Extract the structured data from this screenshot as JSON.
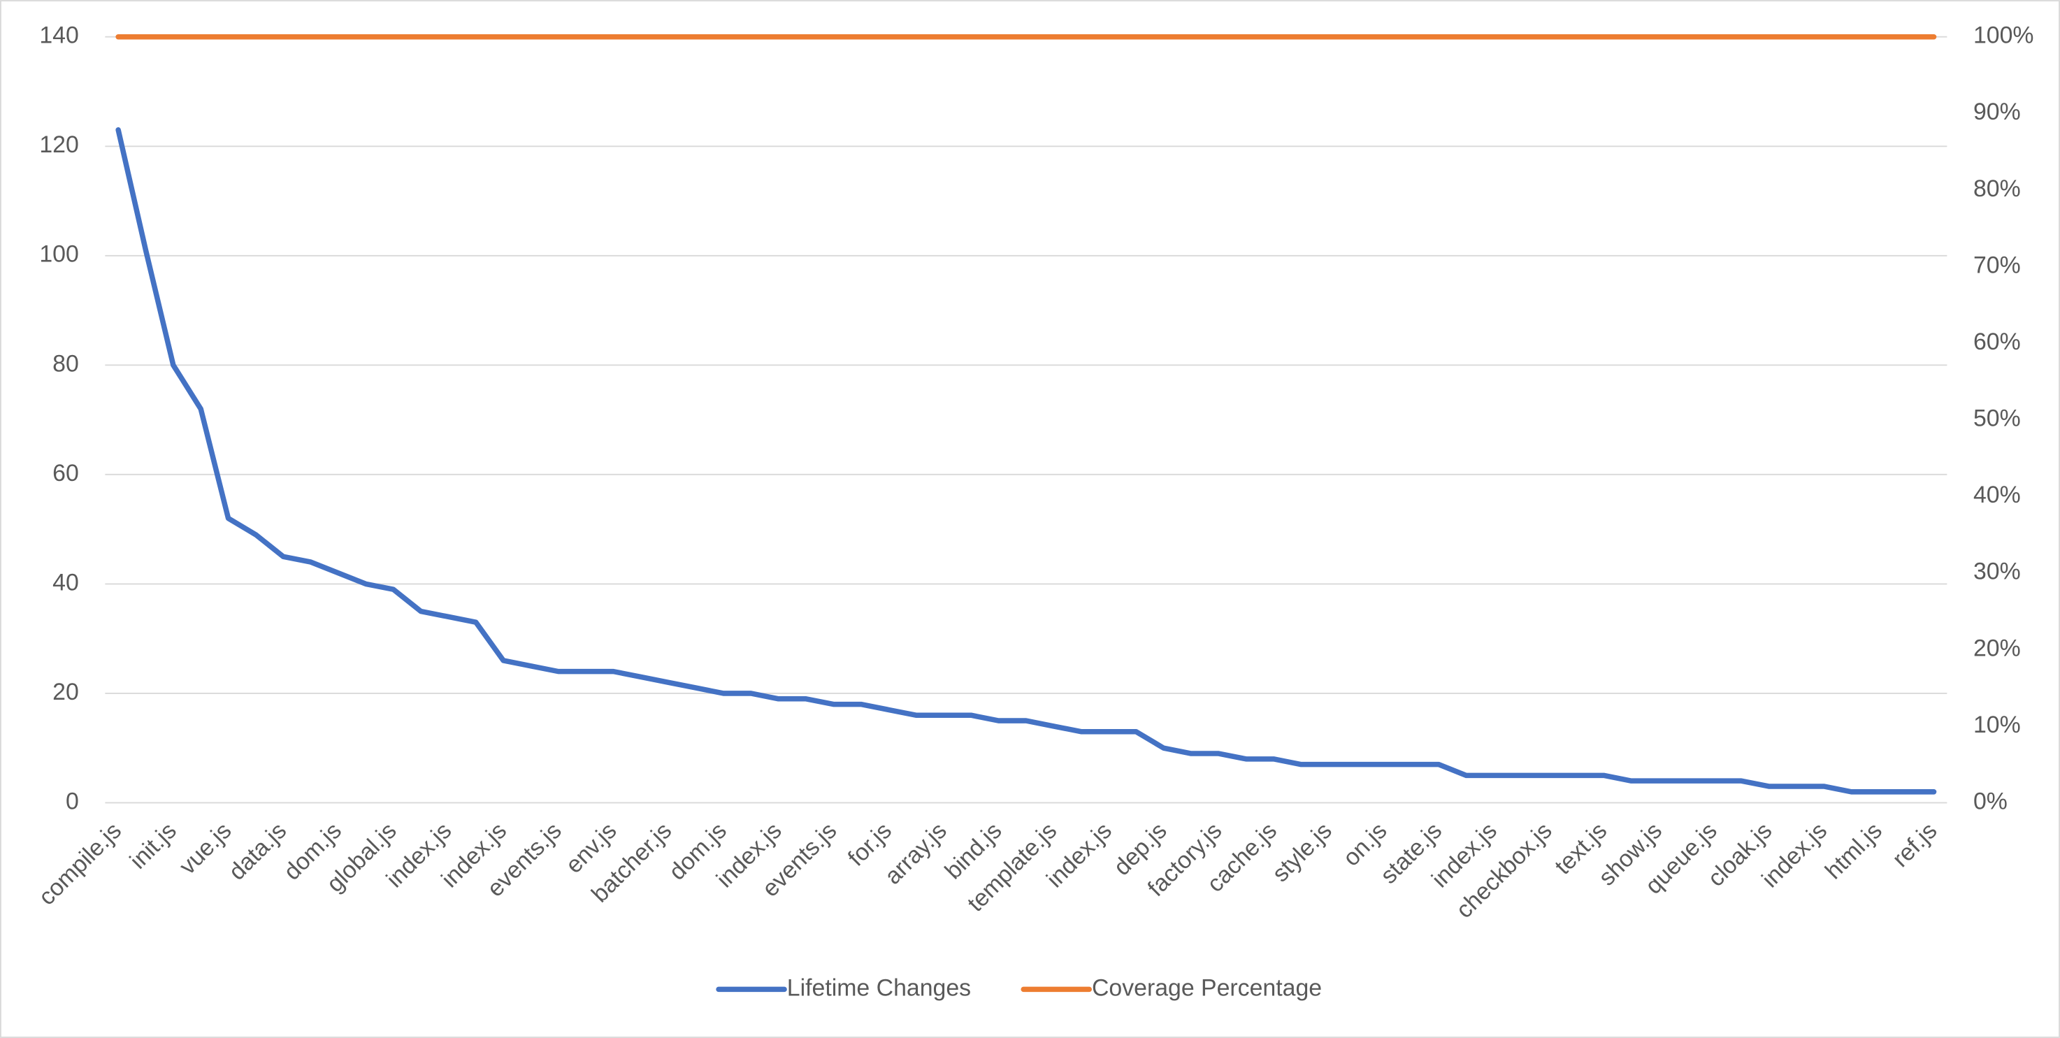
{
  "chart_data": {
    "type": "line",
    "categories": [
      "compile.js",
      null,
      "init.js",
      null,
      "vue.js",
      null,
      "data.js",
      null,
      "dom.js",
      null,
      "global.js",
      null,
      "index.js",
      null,
      "index.js",
      null,
      "events.js",
      null,
      "env.js",
      null,
      "batcher.js",
      null,
      "dom.js",
      null,
      "index.js",
      null,
      "events.js",
      null,
      "for.js",
      null,
      "array.js",
      null,
      "bind.js",
      null,
      "template.js",
      null,
      "index.js",
      null,
      "dep.js",
      null,
      "factory.js",
      null,
      "cache.js",
      null,
      "style.js",
      null,
      "on.js",
      null,
      "state.js",
      null,
      "index.js",
      null,
      "checkbox.js",
      null,
      "text.js",
      null,
      "show.js",
      null,
      "queue.js",
      null,
      "cloak.js",
      null,
      "index.js",
      null,
      "html.js",
      null,
      "ref.js"
    ],
    "series": [
      {
        "name": "Lifetime Changes",
        "color": "#4472c4",
        "values": [
          123,
          101,
          80,
          72,
          52,
          49,
          45,
          44,
          42,
          40,
          39,
          35,
          34,
          33,
          26,
          25,
          24,
          24,
          24,
          23,
          22,
          21,
          20,
          20,
          19,
          19,
          18,
          18,
          17,
          16,
          16,
          16,
          15,
          15,
          14,
          13,
          13,
          13,
          10,
          9,
          9,
          8,
          8,
          7,
          7,
          7,
          7,
          7,
          7,
          5,
          5,
          5,
          5,
          5,
          5,
          4,
          4,
          4,
          4,
          4,
          3,
          3,
          3,
          2,
          2,
          2,
          2
        ]
      },
      {
        "name": "Coverage Percentage",
        "color": "#ed7d31",
        "axis": "y2",
        "values": [
          100,
          100,
          100,
          100,
          100,
          100,
          100,
          100,
          100,
          100,
          100,
          100,
          100,
          100,
          100,
          100,
          100,
          100,
          100,
          100,
          100,
          100,
          100,
          100,
          100,
          100,
          100,
          100,
          100,
          100,
          100,
          100,
          100,
          100,
          100,
          100,
          100,
          100,
          100,
          100,
          100,
          100,
          100,
          100,
          100,
          100,
          100,
          100,
          100,
          100,
          100,
          100,
          100,
          100,
          100,
          100,
          100,
          100,
          100,
          100,
          100,
          100,
          100,
          100,
          100,
          100,
          100
        ]
      }
    ],
    "ylim": [
      0,
      140
    ],
    "yticks": [
      0,
      20,
      40,
      60,
      80,
      100,
      120,
      140
    ],
    "y2lim": [
      0,
      100
    ],
    "y2ticks": [
      {
        "value": 0,
        "label": "0%"
      },
      {
        "value": 10,
        "label": "10%"
      },
      {
        "value": 20,
        "label": "20%"
      },
      {
        "value": 30,
        "label": "30%"
      },
      {
        "value": 40,
        "label": "40%"
      },
      {
        "value": 50,
        "label": "50%"
      },
      {
        "value": 60,
        "label": "60%"
      },
      {
        "value": 70,
        "label": "70%"
      },
      {
        "value": 80,
        "label": "80%"
      },
      {
        "value": 90,
        "label": "90%"
      },
      {
        "value": 100,
        "label": "100%"
      }
    ],
    "grid": true,
    "legend": "bottom"
  }
}
